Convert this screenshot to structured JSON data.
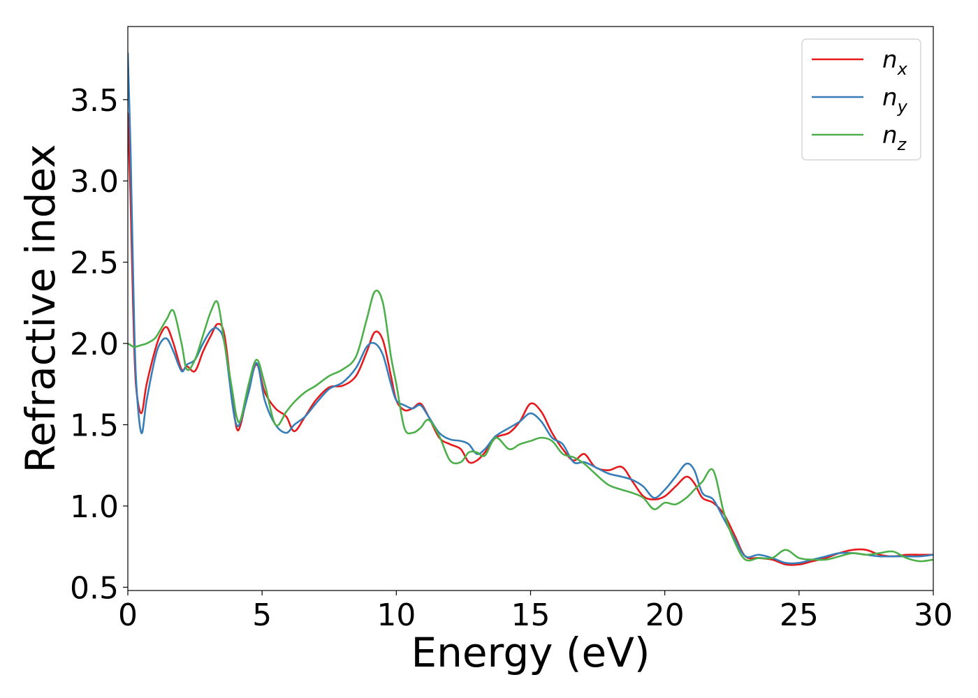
{
  "chart_data": {
    "type": "line",
    "xlabel": "Energy (eV)",
    "ylabel": "Refractive index",
    "xlim": [
      0,
      30
    ],
    "ylim": [
      0.48,
      3.95
    ],
    "xticks": [
      0,
      5,
      10,
      15,
      20,
      25,
      30
    ],
    "xtick_labels": [
      "0",
      "5",
      "10",
      "15",
      "20",
      "25",
      "30"
    ],
    "yticks": [
      0.5,
      1.0,
      1.5,
      2.0,
      2.5,
      3.0,
      3.5
    ],
    "ytick_labels": [
      "0.5",
      "1.0",
      "1.5",
      "2.0",
      "2.5",
      "3.0",
      "3.5"
    ],
    "grid": false,
    "legend_position": "top-right",
    "series": [
      {
        "name": "n_x",
        "legend_base": "n",
        "legend_sub": "x",
        "color": "#e41a1c",
        "x": [
          0,
          0.1,
          0.2,
          0.3,
          0.5,
          0.7,
          1.0,
          1.2,
          1.45,
          1.7,
          2.0,
          2.2,
          2.5,
          2.8,
          3.1,
          3.35,
          3.6,
          3.9,
          4.05,
          4.2,
          4.5,
          4.8,
          5.1,
          5.5,
          5.9,
          6.2,
          6.6,
          7.0,
          7.5,
          8.0,
          8.5,
          8.9,
          9.2,
          9.5,
          9.8,
          10.0,
          10.3,
          10.6,
          10.9,
          11.2,
          11.6,
          12.0,
          12.4,
          12.7,
          13.0,
          13.3,
          13.7,
          14.2,
          14.6,
          15.0,
          15.4,
          15.8,
          16.2,
          16.6,
          17.0,
          17.4,
          17.9,
          18.4,
          18.8,
          19.2,
          19.6,
          20.0,
          20.4,
          20.8,
          21.1,
          21.4,
          21.8,
          22.2,
          22.6,
          23.0,
          23.5,
          24.0,
          24.5,
          25.0,
          25.5,
          26.0,
          26.5,
          27.0,
          27.5,
          28.0,
          28.5,
          29.0,
          29.5,
          30.0
        ],
        "values": [
          3.42,
          2.9,
          2.2,
          1.75,
          1.57,
          1.75,
          1.95,
          2.05,
          2.1,
          2.0,
          1.84,
          1.86,
          1.83,
          1.95,
          2.05,
          2.12,
          2.05,
          1.65,
          1.48,
          1.5,
          1.72,
          1.87,
          1.7,
          1.6,
          1.55,
          1.46,
          1.55,
          1.65,
          1.73,
          1.74,
          1.8,
          1.95,
          2.07,
          2.02,
          1.8,
          1.65,
          1.59,
          1.6,
          1.63,
          1.55,
          1.42,
          1.38,
          1.35,
          1.27,
          1.28,
          1.33,
          1.42,
          1.45,
          1.52,
          1.63,
          1.58,
          1.45,
          1.35,
          1.28,
          1.32,
          1.24,
          1.22,
          1.24,
          1.15,
          1.06,
          1.04,
          1.06,
          1.12,
          1.18,
          1.14,
          1.05,
          1.02,
          0.95,
          0.82,
          0.69,
          0.68,
          0.67,
          0.64,
          0.64,
          0.66,
          0.68,
          0.71,
          0.73,
          0.73,
          0.7,
          0.69,
          0.7,
          0.7,
          0.7
        ]
      },
      {
        "name": "n_y",
        "legend_base": "n",
        "legend_sub": "y",
        "color": "#377eb8",
        "x": [
          0,
          0.1,
          0.2,
          0.3,
          0.5,
          0.7,
          1.0,
          1.2,
          1.45,
          1.7,
          2.0,
          2.2,
          2.5,
          2.8,
          3.1,
          3.35,
          3.6,
          3.9,
          4.05,
          4.2,
          4.5,
          4.8,
          5.1,
          5.5,
          5.9,
          6.2,
          6.6,
          7.0,
          7.5,
          8.0,
          8.5,
          8.9,
          9.2,
          9.5,
          9.8,
          10.0,
          10.3,
          10.6,
          10.9,
          11.2,
          11.6,
          12.0,
          12.4,
          12.7,
          13.0,
          13.3,
          13.7,
          14.2,
          14.6,
          15.0,
          15.4,
          15.8,
          16.2,
          16.6,
          17.0,
          17.4,
          17.9,
          18.4,
          18.8,
          19.2,
          19.6,
          20.0,
          20.4,
          20.8,
          21.1,
          21.4,
          21.8,
          22.2,
          22.6,
          23.0,
          23.5,
          24.0,
          24.5,
          25.0,
          25.5,
          26.0,
          26.5,
          27.0,
          27.5,
          28.0,
          28.5,
          29.0,
          29.5,
          30.0
        ],
        "values": [
          3.79,
          3.2,
          2.4,
          1.8,
          1.45,
          1.65,
          1.9,
          2.0,
          2.03,
          1.95,
          1.83,
          1.87,
          1.9,
          2.0,
          2.08,
          2.09,
          2.0,
          1.62,
          1.5,
          1.52,
          1.7,
          1.88,
          1.65,
          1.5,
          1.45,
          1.5,
          1.55,
          1.63,
          1.72,
          1.76,
          1.85,
          1.98,
          2.0,
          1.93,
          1.75,
          1.65,
          1.62,
          1.6,
          1.62,
          1.55,
          1.45,
          1.41,
          1.4,
          1.38,
          1.32,
          1.35,
          1.43,
          1.48,
          1.52,
          1.57,
          1.52,
          1.42,
          1.38,
          1.27,
          1.27,
          1.24,
          1.2,
          1.18,
          1.16,
          1.12,
          1.05,
          1.1,
          1.18,
          1.26,
          1.22,
          1.08,
          1.04,
          0.92,
          0.8,
          0.69,
          0.7,
          0.68,
          0.65,
          0.65,
          0.67,
          0.69,
          0.71,
          0.71,
          0.7,
          0.69,
          0.69,
          0.69,
          0.69,
          0.7
        ]
      },
      {
        "name": "n_z",
        "legend_base": "n",
        "legend_sub": "z",
        "color": "#4daf4a",
        "x": [
          0,
          0.1,
          0.2,
          0.3,
          0.5,
          0.7,
          1.0,
          1.2,
          1.45,
          1.7,
          2.0,
          2.2,
          2.5,
          2.8,
          3.1,
          3.35,
          3.6,
          3.9,
          4.05,
          4.2,
          4.5,
          4.8,
          5.1,
          5.5,
          5.9,
          6.2,
          6.6,
          7.0,
          7.5,
          8.0,
          8.5,
          8.9,
          9.2,
          9.5,
          9.8,
          10.0,
          10.3,
          10.6,
          10.9,
          11.2,
          11.6,
          12.0,
          12.4,
          12.7,
          13.0,
          13.3,
          13.7,
          14.2,
          14.6,
          15.0,
          15.4,
          15.8,
          16.2,
          16.6,
          17.0,
          17.4,
          17.9,
          18.4,
          18.8,
          19.2,
          19.6,
          20.0,
          20.4,
          20.8,
          21.1,
          21.4,
          21.8,
          22.2,
          22.6,
          23.0,
          23.5,
          24.0,
          24.5,
          25.0,
          25.5,
          26.0,
          26.5,
          27.0,
          27.5,
          28.0,
          28.5,
          29.0,
          29.5,
          30.0
        ],
        "values": [
          2.0,
          1.99,
          1.98,
          1.98,
          1.99,
          2.0,
          2.03,
          2.08,
          2.15,
          2.2,
          2.0,
          1.84,
          1.9,
          2.05,
          2.2,
          2.25,
          2.0,
          1.7,
          1.55,
          1.53,
          1.75,
          1.9,
          1.75,
          1.5,
          1.58,
          1.64,
          1.7,
          1.74,
          1.8,
          1.84,
          1.92,
          2.15,
          2.32,
          2.25,
          1.92,
          1.75,
          1.48,
          1.45,
          1.48,
          1.53,
          1.43,
          1.28,
          1.27,
          1.33,
          1.33,
          1.31,
          1.42,
          1.35,
          1.38,
          1.4,
          1.42,
          1.4,
          1.32,
          1.3,
          1.26,
          1.2,
          1.13,
          1.1,
          1.08,
          1.05,
          0.98,
          1.02,
          1.01,
          1.05,
          1.1,
          1.15,
          1.22,
          0.96,
          0.78,
          0.67,
          0.68,
          0.68,
          0.73,
          0.68,
          0.67,
          0.67,
          0.69,
          0.71,
          0.7,
          0.71,
          0.72,
          0.68,
          0.66,
          0.67
        ]
      }
    ]
  }
}
